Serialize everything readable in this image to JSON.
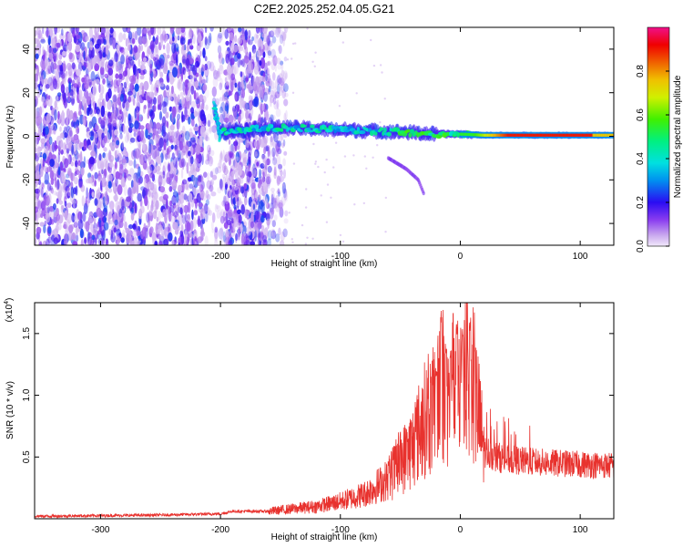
{
  "title": "C2E2.2025.252.04.05.G21",
  "chart_data": [
    {
      "type": "heatmap",
      "name": "spectrogram",
      "xlabel": "Height of straight line (km)",
      "ylabel": "Frequency (Hz)",
      "xlim": [
        -355,
        128
      ],
      "ylim": [
        -50,
        50
      ],
      "xticks": [
        -300,
        -200,
        -100,
        0,
        100
      ],
      "yticks": [
        -40,
        -20,
        0,
        20,
        40
      ],
      "colorbar": {
        "label": "Normalized spectral amplitude",
        "range": [
          0,
          1
        ],
        "ticks": [
          0.0,
          0.2,
          0.4,
          0.6,
          0.8
        ]
      },
      "ridge": {
        "description_points_x": [
          -205,
          -200,
          -180,
          -150,
          -100,
          -50,
          -20,
          0,
          20,
          50,
          100,
          128
        ],
        "description_points_y": [
          12,
          2,
          3,
          4,
          3,
          2,
          1,
          1,
          0.5,
          0.5,
          0.5,
          0.5
        ]
      },
      "side_branch": {
        "x": [
          -60,
          -45,
          -35,
          -30
        ],
        "y": [
          -10,
          -15,
          -20,
          -27
        ]
      }
    },
    {
      "type": "line",
      "name": "snr",
      "xlabel": "Height of straight line (km)",
      "ylabel": "SNR (10 * v/v)",
      "y_multiplier": "(x10",
      "y_exponent": "4",
      "y_exponent_close": ")",
      "xlim": [
        -355,
        128
      ],
      "ylim": [
        0,
        1.75
      ],
      "xticks": [
        -300,
        -200,
        -100,
        0,
        100
      ],
      "yticks": [
        0.5,
        1.0,
        1.5
      ],
      "ytick_labels": [
        "0.5",
        "1.0",
        "1.5"
      ],
      "color": "#e8322e",
      "envelope_x": [
        -355,
        -250,
        -200,
        -190,
        -160,
        -140,
        -120,
        -100,
        -80,
        -60,
        -50,
        -40,
        -30,
        -20,
        -15,
        -10,
        -5,
        0,
        5,
        10,
        15,
        20,
        30,
        40,
        60,
        80,
        100,
        128
      ],
      "envelope_y": [
        0.02,
        0.03,
        0.04,
        0.06,
        0.06,
        0.08,
        0.1,
        0.14,
        0.2,
        0.32,
        0.45,
        0.58,
        0.8,
        0.9,
        1.05,
        0.95,
        1.1,
        1.15,
        1.2,
        1.1,
        0.85,
        0.55,
        0.5,
        0.48,
        0.46,
        0.45,
        0.44,
        0.43
      ],
      "peaks_x": [
        -20,
        -16,
        -12,
        -8,
        -3,
        2,
        8,
        12
      ],
      "peaks_y": [
        1.25,
        1.72,
        1.45,
        1.38,
        1.58,
        1.55,
        1.62,
        1.45
      ]
    }
  ]
}
